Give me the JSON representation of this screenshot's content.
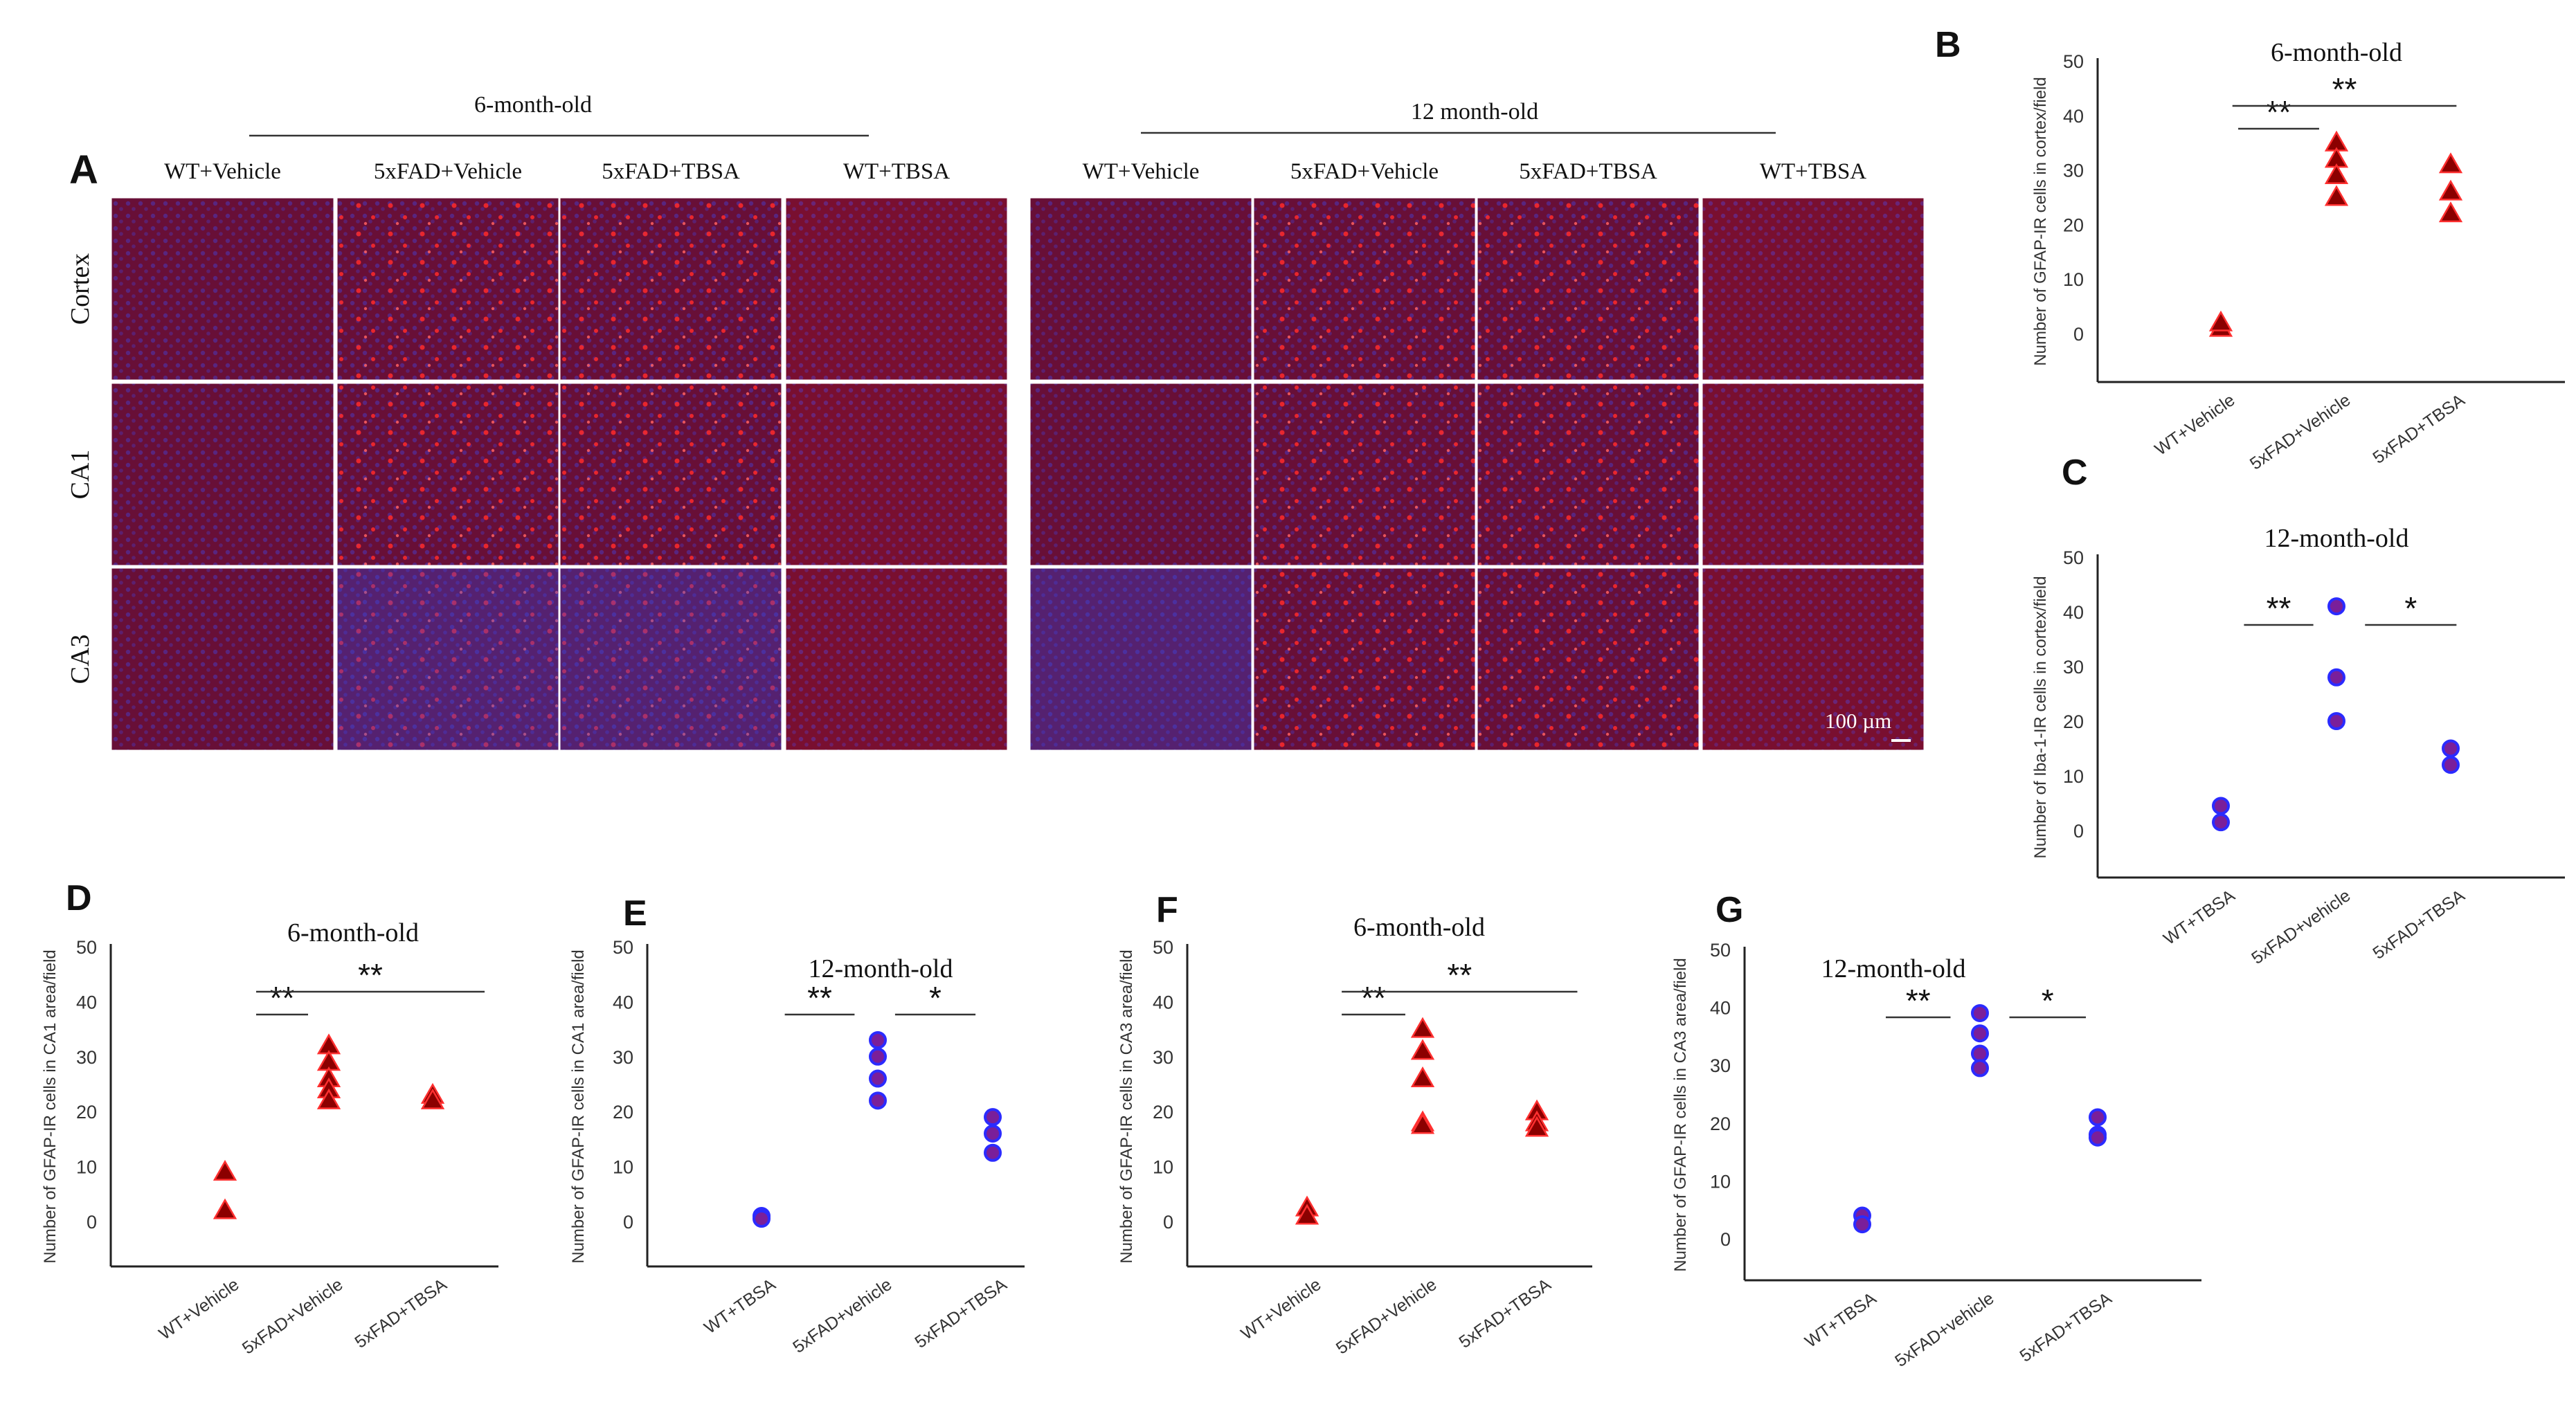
{
  "colors": {
    "triangle_fill": "#8B0000",
    "triangle_stroke": "#ff3030",
    "circle_fill": "#7a1f9a",
    "circle_stroke": "#2b2bff",
    "tissue_base": "#5a1030",
    "nuclei_blue": "#3344dd",
    "gfap_red": "#ff2a2a"
  },
  "micrograph": {
    "panel_letter": "A",
    "age_group_1": "6-month-old",
    "age_group_2": "12 month-old",
    "column_labels": [
      "WT+Vehicle",
      "5xFAD+Vehicle",
      "5xFAD+TBSA",
      "WT+TBSA",
      "WT+Vehicle",
      "5xFAD+Vehicle",
      "5xFAD+TBSA",
      "WT+TBSA"
    ],
    "row_labels": [
      "Cortex",
      "CA1",
      "CA3"
    ],
    "scale_bar_label": "100 µm"
  },
  "chart_data": [
    {
      "panel": "B",
      "type": "scatter",
      "title": "6-month-old",
      "ylabel": "Number of GFAP-IR cells in cortex/field",
      "categories": [
        "WT+Vehicle",
        "5xFAD+Vehicle",
        "5xFAD+TBSA"
      ],
      "ylim": [
        0,
        50
      ],
      "yticks": [
        0,
        10,
        20,
        30,
        40,
        50
      ],
      "marker": "triangle",
      "points": [
        [
          1,
          1
        ],
        [
          1,
          2
        ],
        [
          2,
          35
        ],
        [
          2,
          32
        ],
        [
          2,
          29
        ],
        [
          2,
          25
        ],
        [
          3,
          31
        ],
        [
          3,
          26
        ],
        [
          3,
          22
        ]
      ],
      "significance": [
        {
          "from": 1.15,
          "to": 1.85,
          "label": "**"
        },
        {
          "from": 1.1,
          "to": 3.05,
          "label": "**"
        }
      ]
    },
    {
      "panel": "C",
      "type": "scatter",
      "title": "12-month-old",
      "ylabel": "Number of Iba-1-IR cells in cortex/field",
      "categories": [
        "WT+TBSA",
        "5xFAD+vehicle",
        "5xFAD+TBSA"
      ],
      "ylim": [
        0,
        50
      ],
      "yticks": [
        0,
        10,
        20,
        30,
        40,
        50
      ],
      "marker": "circle",
      "points": [
        [
          1,
          1.5
        ],
        [
          1,
          4.5
        ],
        [
          2,
          41
        ],
        [
          2,
          28
        ],
        [
          2,
          20
        ],
        [
          3,
          15
        ],
        [
          3,
          12
        ]
      ],
      "significance": [
        {
          "from": 1.2,
          "to": 1.8,
          "label": "**"
        },
        {
          "from": 2.25,
          "to": 3.05,
          "label": "*"
        }
      ]
    },
    {
      "panel": "D",
      "type": "scatter",
      "title": "6-month-old",
      "ylabel": "Number of GFAP-IR cells in CA1 area/field",
      "categories": [
        "WT+Vehicle",
        "5xFAD+Vehicle",
        "5xFAD+TBSA"
      ],
      "ylim": [
        0,
        50
      ],
      "yticks": [
        0,
        10,
        20,
        30,
        40,
        50
      ],
      "marker": "triangle",
      "points": [
        [
          1,
          9
        ],
        [
          1,
          2
        ],
        [
          2,
          32
        ],
        [
          2,
          29
        ],
        [
          2,
          26
        ],
        [
          2,
          24
        ],
        [
          2,
          22
        ],
        [
          3,
          23
        ],
        [
          3,
          22
        ]
      ],
      "significance": [
        {
          "from": 1.3,
          "to": 1.8,
          "label": "**"
        },
        {
          "from": 1.3,
          "to": 3.5,
          "label": "**"
        }
      ]
    },
    {
      "panel": "E",
      "type": "scatter",
      "title": "12-month-old",
      "ylabel": "Number of GFAP-IR cells in CA1 area/field",
      "categories": [
        "WT+TBSA",
        "5xFAD+vehicle",
        "5xFAD+TBSA"
      ],
      "ylim": [
        0,
        50
      ],
      "yticks": [
        0,
        10,
        20,
        30,
        40,
        50
      ],
      "marker": "circle",
      "points": [
        [
          1,
          1
        ],
        [
          1,
          0.5
        ],
        [
          2,
          33
        ],
        [
          2,
          30
        ],
        [
          2,
          26
        ],
        [
          2,
          22
        ],
        [
          3,
          19
        ],
        [
          3,
          16
        ],
        [
          3,
          12.5
        ]
      ],
      "significance": [
        {
          "from": 1.2,
          "to": 1.8,
          "label": "**"
        },
        {
          "from": 2.15,
          "to": 2.85,
          "label": "*"
        }
      ]
    },
    {
      "panel": "F",
      "type": "scatter",
      "title": "6-month-old",
      "ylabel": "Number of GFAP-IR cells in CA3 area/field",
      "categories": [
        "WT+Vehicle",
        "5xFAD+Vehicle",
        "5xFAD+TBSA"
      ],
      "ylim": [
        0,
        50
      ],
      "yticks": [
        0,
        10,
        20,
        30,
        40,
        50
      ],
      "marker": "triangle",
      "points": [
        [
          1,
          2.5
        ],
        [
          1,
          1
        ],
        [
          2,
          35
        ],
        [
          2,
          31
        ],
        [
          2,
          26
        ],
        [
          2,
          18
        ],
        [
          2,
          17.5
        ],
        [
          3,
          20
        ],
        [
          3,
          18
        ],
        [
          3,
          17
        ]
      ],
      "significance": [
        {
          "from": 1.3,
          "to": 1.85,
          "label": "**"
        },
        {
          "from": 1.3,
          "to": 3.35,
          "label": "**"
        }
      ]
    },
    {
      "panel": "G",
      "type": "scatter",
      "title": "12-month-old",
      "ylabel": "Number of GFAP-IR cells in CA3 area/field",
      "categories": [
        "WT+TBSA",
        "5xFAD+vehicle",
        "5xFAD+TBSA"
      ],
      "ylim": [
        0,
        50
      ],
      "yticks": [
        0,
        10,
        20,
        30,
        40,
        50
      ],
      "marker": "circle",
      "points": [
        [
          1,
          4
        ],
        [
          1,
          2.5
        ],
        [
          2,
          39
        ],
        [
          2,
          35.5
        ],
        [
          2,
          32
        ],
        [
          2,
          29.5
        ],
        [
          3,
          21
        ],
        [
          3,
          18
        ],
        [
          3,
          17.5
        ]
      ],
      "significance": [
        {
          "from": 1.2,
          "to": 1.75,
          "label": "**"
        },
        {
          "from": 2.25,
          "to": 2.9,
          "label": "*"
        }
      ]
    }
  ]
}
